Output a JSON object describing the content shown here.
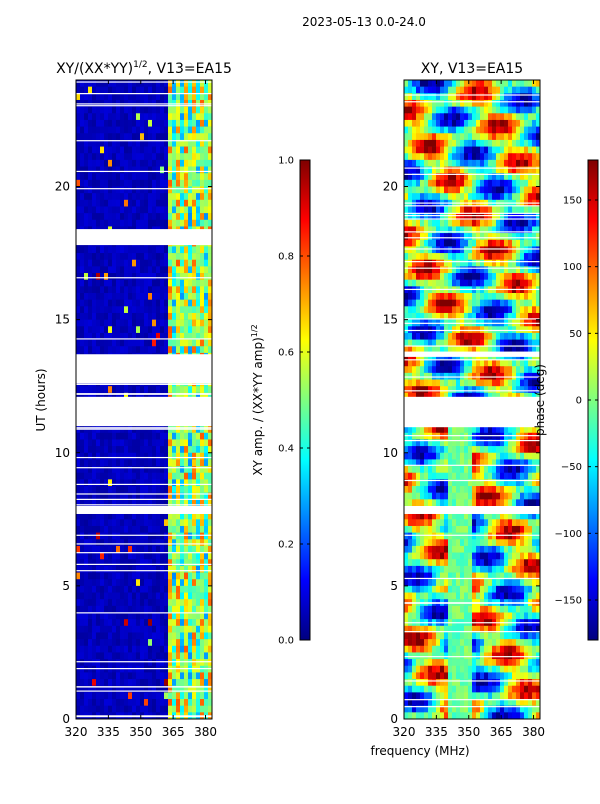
{
  "figure": {
    "suptitle": "2023-05-13 0.0-24.0",
    "shared_xlabel": "frequency (MHz)"
  },
  "colors": {
    "jet": [
      "#00007f",
      "#0000ff",
      "#007fff",
      "#00ffff",
      "#7fff7f",
      "#ffff00",
      "#ff7f00",
      "#ff0000",
      "#7f0000"
    ],
    "background_low": "#00008b",
    "gap": "#ffffff"
  },
  "chart_data": [
    {
      "type": "heatmap",
      "title_main": "XY/(XX*YY)",
      "title_sup": "1/2",
      "title_rest": ", V13=EA15",
      "ylabel": "UT (hours)",
      "xlim": [
        320,
        383
      ],
      "ylim": [
        0,
        24
      ],
      "xticks": [
        320,
        335,
        350,
        365,
        380
      ],
      "yticks": [
        0,
        5,
        10,
        15,
        20
      ],
      "quantity": "amplitude",
      "signal_bands_mhz": [
        [
          362,
          383
        ]
      ],
      "gap_bands_hours": [
        [
          11.0,
          12.1
        ],
        [
          7.7,
          8.0
        ],
        [
          12.6,
          13.7
        ],
        [
          17.8,
          18.4
        ]
      ],
      "colorbar": {
        "label_main": "XY amp. / (XX*YY amp)",
        "label_sup": "1/2",
        "min": 0.0,
        "max": 1.0,
        "ticks": [
          "0.0",
          "0.2",
          "0.4",
          "0.6",
          "0.8",
          "1.0"
        ],
        "tick_values": [
          0.0,
          0.2,
          0.4,
          0.6,
          0.8,
          1.0
        ]
      }
    },
    {
      "type": "heatmap",
      "title_main": "XY, V13=EA15",
      "title_sup": "",
      "title_rest": "",
      "ylabel": "",
      "xlim": [
        320,
        383
      ],
      "ylim": [
        0,
        24
      ],
      "xticks": [
        320,
        335,
        350,
        365,
        380
      ],
      "yticks": [
        0,
        5,
        10,
        15,
        20
      ],
      "quantity": "phase",
      "gap_bands_hours": [
        [
          11.0,
          12.1
        ],
        [
          7.7,
          8.0
        ],
        [
          13.6,
          13.8
        ]
      ],
      "colorbar": {
        "label_main": "phase (deg)",
        "label_sup": "",
        "min": -180,
        "max": 180,
        "ticks": [
          "−150",
          "−100",
          "−50",
          "0",
          "50",
          "100",
          "150"
        ],
        "tick_values": [
          -150,
          -100,
          -50,
          0,
          50,
          100,
          150
        ]
      }
    }
  ]
}
